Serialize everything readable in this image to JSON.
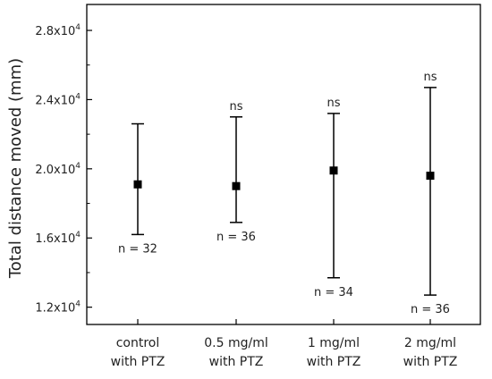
{
  "chart_data": {
    "type": "scatter",
    "ylabel": "Total distance moved (mm)",
    "xlabel": "",
    "ylim": [
      11000,
      29500
    ],
    "yticks": [
      {
        "value": 12000,
        "mantissa": "1.2x10",
        "exp": "4"
      },
      {
        "value": 16000,
        "mantissa": "1.6x10",
        "exp": "4"
      },
      {
        "value": 20000,
        "mantissa": "2.0x10",
        "exp": "4"
      },
      {
        "value": 24000,
        "mantissa": "2.4x10",
        "exp": "4"
      },
      {
        "value": 28000,
        "mantissa": "2.8x10",
        "exp": "4"
      }
    ],
    "categories": [
      [
        "control",
        "with PTZ"
      ],
      [
        "0.5 mg/ml",
        "with PTZ"
      ],
      [
        "1 mg/ml",
        "with PTZ"
      ],
      [
        "2 mg/ml",
        "with PTZ"
      ]
    ],
    "points": [
      {
        "mean": 19100,
        "upper": 22600,
        "lower": 16200,
        "n_label": "n = 32",
        "sig": ""
      },
      {
        "mean": 19000,
        "upper": 23000,
        "lower": 16900,
        "n_label": "n = 36",
        "sig": "ns"
      },
      {
        "mean": 19900,
        "upper": 23200,
        "lower": 13700,
        "n_label": "n = 34",
        "sig": "ns"
      },
      {
        "mean": 19600,
        "upper": 24700,
        "lower": 12700,
        "n_label": "n = 36",
        "sig": "ns"
      }
    ],
    "grid": false,
    "legend": "none"
  }
}
